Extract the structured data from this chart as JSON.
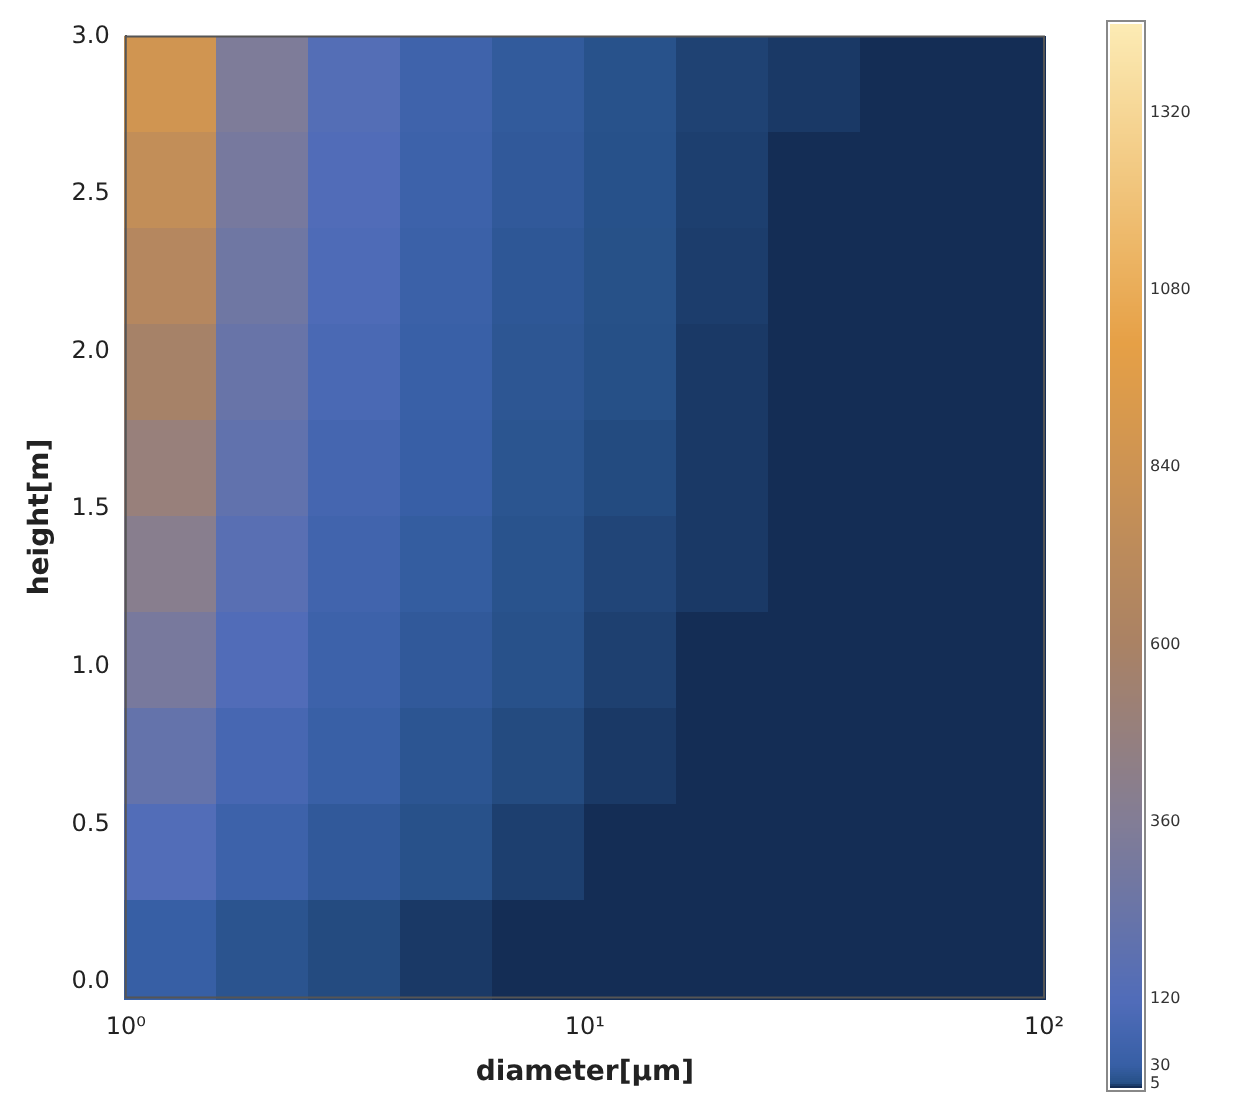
{
  "chart_data": {
    "type": "heatmap",
    "xlabel": "diameter[μm]",
    "ylabel": "height[m]",
    "log": "x",
    "xlim": [
      1,
      100
    ],
    "xticks": [
      {
        "value": 1,
        "label": "10⁰"
      },
      {
        "value": 10,
        "label": "10¹"
      },
      {
        "value": 100,
        "label": "10²"
      }
    ],
    "ylim": [
      -0.05,
      3.0
    ],
    "yticks": [
      {
        "value": 0,
        "label": "0.0"
      },
      {
        "value": 0.5,
        "label": "0.5"
      },
      {
        "value": 1,
        "label": "1.0"
      },
      {
        "value": 1.5,
        "label": "1.5"
      },
      {
        "value": 2,
        "label": "2.0"
      },
      {
        "value": 2.5,
        "label": "2.5"
      },
      {
        "value": 3,
        "label": "3.0"
      }
    ],
    "cells": [
      [
        862,
        342,
        137,
        55,
        22,
        8.6,
        3.4,
        2,
        0,
        0
      ],
      [
        768,
        305,
        122,
        49,
        20,
        7.7,
        3.0,
        0,
        0,
        0
      ],
      [
        677,
        269,
        108,
        43,
        17,
        6.8,
        2.7,
        0,
        0,
        0
      ],
      [
        583,
        232,
        93,
        37,
        15,
        5.8,
        2,
        0,
        0,
        0
      ],
      [
        493,
        196,
        78,
        31,
        13,
        4.9,
        2,
        0,
        0,
        0
      ],
      [
        399,
        159,
        63,
        25,
        10,
        4.0,
        2,
        0,
        0,
        0
      ],
      [
        309,
        122,
        49,
        20,
        8,
        3.1,
        0,
        0,
        0,
        0
      ],
      [
        215,
        85,
        34,
        14,
        5,
        2,
        0,
        0,
        0,
        0
      ],
      [
        124,
        49,
        20,
        8,
        3,
        0,
        0,
        0,
        0,
        0
      ],
      [
        30,
        12,
        5,
        2,
        0,
        0,
        0,
        0,
        0,
        0
      ]
    ],
    "clim": [
      0,
      1440
    ],
    "cticks": [
      5,
      30,
      120,
      360,
      600,
      840,
      1080,
      1320
    ],
    "grid": false,
    "legend": false
  }
}
